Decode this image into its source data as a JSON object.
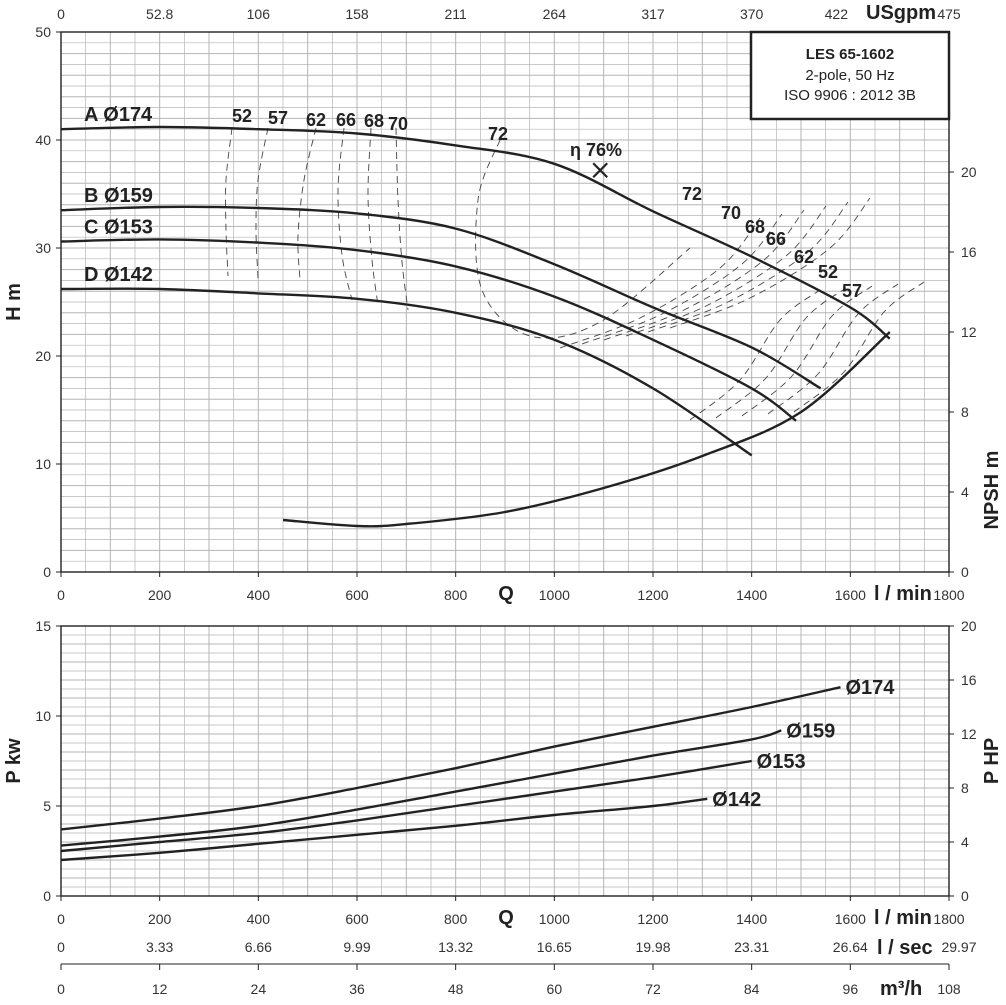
{
  "colors": {
    "curve": "#222222",
    "grid": "#b5b5b5",
    "frame": "#222222"
  },
  "chart_data": [
    {
      "type": "line",
      "title": "LES 65-1602",
      "subtitle": [
        "2-pole, 50 Hz",
        "ISO 9906 : 2012 3B"
      ],
      "xlabel": "l / min",
      "xlabel_center": "Q",
      "ylabel": "H m",
      "y2label": "NPSH m",
      "top_axis_label": "USgpm",
      "xlim": [
        0,
        1800
      ],
      "ylim": [
        0,
        50
      ],
      "y2lim": [
        0,
        27
      ],
      "xticks": [
        "0",
        "200",
        "400",
        "600",
        "800",
        "1000",
        "1200",
        "1400",
        "1600",
        "1800"
      ],
      "yticks": [
        "0",
        "10",
        "20",
        "30",
        "40",
        "50"
      ],
      "y2ticks": [
        "0",
        "4",
        "8",
        "12",
        "16",
        "20"
      ],
      "top_ticks": [
        "0",
        "52.8",
        "106",
        "158",
        "211",
        "264",
        "317",
        "370",
        "422",
        "475"
      ],
      "series": [
        {
          "name": "A Ø174",
          "x": [
            0,
            200,
            400,
            600,
            800,
            1000,
            1200,
            1400,
            1600,
            1680
          ],
          "y": [
            41,
            41.2,
            41,
            40.6,
            39.5,
            37.8,
            33.4,
            29.2,
            24.5,
            21.6
          ]
        },
        {
          "name": "B Ø159",
          "x": [
            0,
            200,
            400,
            600,
            800,
            1000,
            1200,
            1400,
            1540
          ],
          "y": [
            33.5,
            33.8,
            33.7,
            33.2,
            31.8,
            28.5,
            24.5,
            20.8,
            17.0
          ]
        },
        {
          "name": "C Ø153",
          "x": [
            0,
            200,
            400,
            600,
            800,
            1000,
            1200,
            1400,
            1490
          ],
          "y": [
            30.6,
            30.8,
            30.5,
            29.8,
            28.3,
            25.5,
            21.5,
            17.0,
            14.0
          ]
        },
        {
          "name": "D Ø142",
          "x": [
            0,
            200,
            400,
            600,
            800,
            1000,
            1200,
            1400
          ],
          "y": [
            26.2,
            26.2,
            25.8,
            25.3,
            24.0,
            21.5,
            17.0,
            10.8
          ]
        },
        {
          "name": "NPSH",
          "axis": "y2",
          "x": [
            450,
            600,
            700,
            900,
            1100,
            1300,
            1500,
            1680
          ],
          "y": [
            2.6,
            2.3,
            2.4,
            3.0,
            4.2,
            5.8,
            8.0,
            12.0
          ]
        }
      ],
      "efficiency": {
        "best_point_label": "η 76%",
        "best_point": {
          "x": 1093,
          "y": 37.2
        },
        "left_labels": [
          "52",
          "57",
          "62",
          "66",
          "68",
          "70",
          "72"
        ],
        "right_labels": [
          "72",
          "70",
          "68",
          "66",
          "62",
          "52",
          "57"
        ]
      }
    },
    {
      "type": "line",
      "xlabel": "l / min",
      "xlabel_center": "Q",
      "ylabel": "P kw",
      "y2label": "P HP",
      "xlim": [
        0,
        1800
      ],
      "ylim": [
        0,
        15
      ],
      "y2lim": [
        0,
        20
      ],
      "xticks": [
        "0",
        "200",
        "400",
        "600",
        "800",
        "1000",
        "1200",
        "1400",
        "1600",
        "1800"
      ],
      "yticks": [
        "0",
        "5",
        "10",
        "15"
      ],
      "y2ticks": [
        "0",
        "4",
        "8",
        "12",
        "16",
        "20"
      ],
      "series": [
        {
          "name": "Ø174",
          "x": [
            0,
            200,
            400,
            600,
            800,
            1000,
            1200,
            1400,
            1580
          ],
          "y": [
            3.7,
            4.3,
            5.0,
            6.0,
            7.1,
            8.3,
            9.4,
            10.5,
            11.6
          ]
        },
        {
          "name": "Ø159",
          "x": [
            0,
            200,
            400,
            600,
            800,
            1000,
            1200,
            1400,
            1460
          ],
          "y": [
            2.8,
            3.3,
            3.9,
            4.8,
            5.8,
            6.8,
            7.8,
            8.7,
            9.2
          ]
        },
        {
          "name": "Ø153",
          "x": [
            0,
            200,
            400,
            600,
            800,
            1000,
            1200,
            1400
          ],
          "y": [
            2.5,
            3.0,
            3.5,
            4.2,
            5.0,
            5.8,
            6.6,
            7.5
          ]
        },
        {
          "name": "Ø142",
          "x": [
            0,
            200,
            400,
            600,
            800,
            1000,
            1200,
            1310
          ],
          "y": [
            2.0,
            2.4,
            2.9,
            3.4,
            3.9,
            4.5,
            5.0,
            5.4
          ]
        }
      ]
    }
  ],
  "bottom_axes": {
    "lsec": {
      "label": "l / sec",
      "ticks": [
        "0",
        "3.33",
        "6.66",
        "9.99",
        "13.32",
        "16.65",
        "19.98",
        "23.31",
        "26.64",
        "29.97"
      ]
    },
    "m3h": {
      "label": "m³/h",
      "ticks": [
        "0",
        "12",
        "24",
        "36",
        "48",
        "60",
        "72",
        "84",
        "96",
        "108"
      ]
    }
  }
}
